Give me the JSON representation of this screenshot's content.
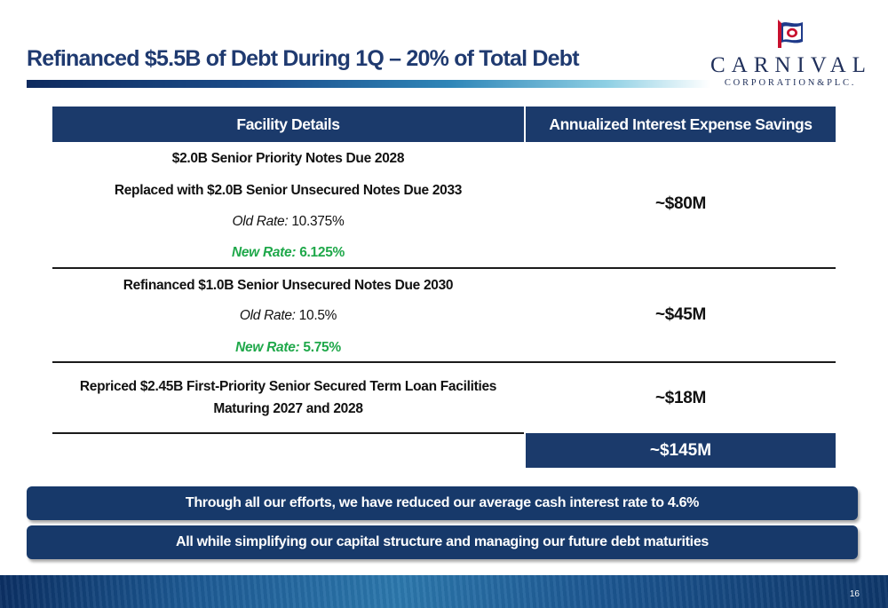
{
  "slide": {
    "title": "Refinanced $5.5B of Debt During 1Q – 20% of Total Debt",
    "page_number": "16"
  },
  "logo": {
    "wordmark": "CARNIVAL",
    "subtitle": "CORPORATION&PLC."
  },
  "table": {
    "headers": {
      "facility": "Facility Details",
      "savings": "Annualized Interest Expense Savings"
    },
    "rows": [
      {
        "line1": "$2.0B Senior Priority Notes Due 2028",
        "line2": "Replaced with $2.0B Senior Unsecured Notes Due 2033",
        "old_rate_label": "Old Rate:",
        "old_rate_value": "10.375%",
        "new_rate_label": "New Rate:",
        "new_rate_value": "6.125%",
        "savings": "~$80M"
      },
      {
        "line1": "Refinanced $1.0B Senior Unsecured Notes Due 2030",
        "old_rate_label": "Old Rate:",
        "old_rate_value": "10.5%",
        "new_rate_label": "New Rate:",
        "new_rate_value": "5.75%",
        "savings": "~$45M"
      },
      {
        "line1": "Repriced $2.45B First-Priority Senior Secured Term Loan Facilities",
        "line2": "Maturing 2027 and 2028",
        "savings": "~$18M"
      }
    ],
    "total": "~$145M"
  },
  "banners": [
    "Through all our efforts, we have reduced our average cash interest rate to 4.6%",
    "All while simplifying our capital structure and managing our future debt maturities"
  ],
  "colors": {
    "navy": "#1b3a6b",
    "title_blue": "#1f3a70",
    "new_rate_green": "#1fa84a"
  },
  "icons": {
    "logo_mark": "ship-funnel-flag-icon"
  }
}
